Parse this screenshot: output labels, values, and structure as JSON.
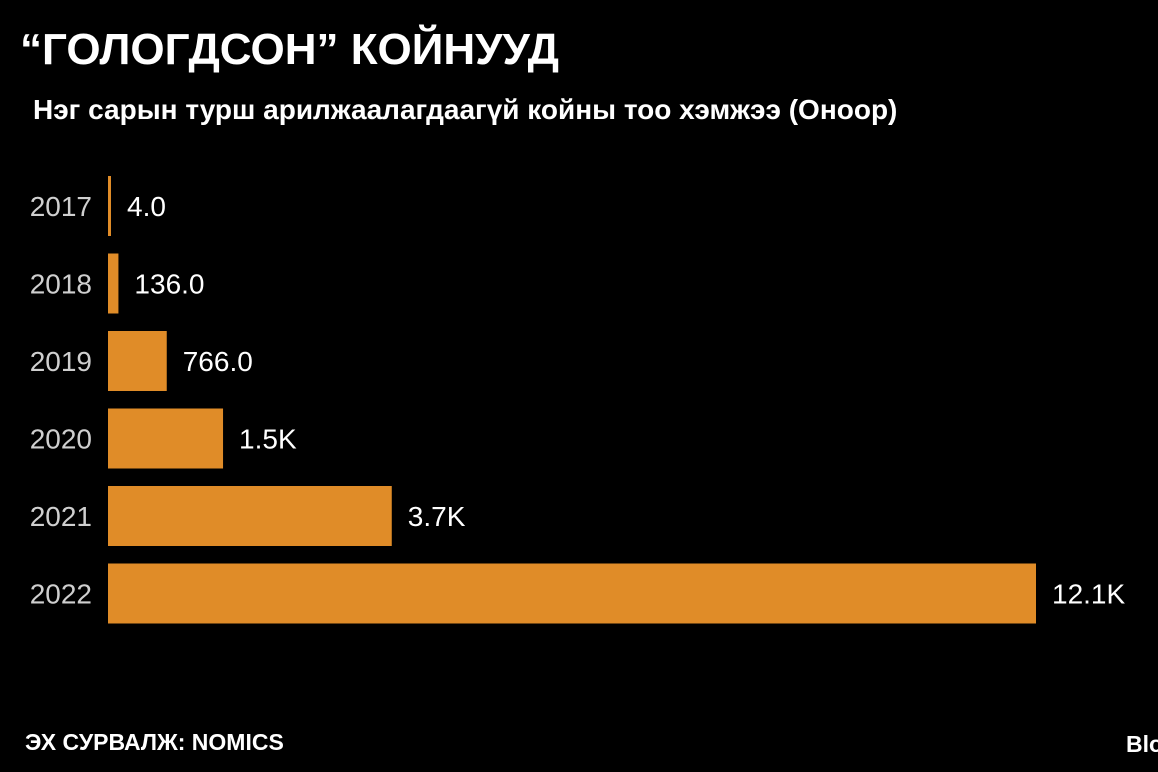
{
  "title": "“ГОЛОГДСОН” КОЙНУУД",
  "subtitle": "Нэг сарын турш арилжаалагдаагүй койны тоо хэмжээ (Оноор)",
  "source": "ЭХ СУРВАЛЖ: NOMICS",
  "brand": "Bloomberg",
  "colors": {
    "background": "#000000",
    "bar": "#e08c28",
    "text": "#ffffff",
    "tick_text": "#cfcfcf"
  },
  "chart_data": {
    "type": "bar",
    "orientation": "horizontal",
    "categories": [
      "2017",
      "2018",
      "2019",
      "2020",
      "2021",
      "2022"
    ],
    "values": [
      4,
      136,
      766,
      1500,
      3700,
      12100
    ],
    "data_labels": [
      "4.0",
      "136.0",
      "766.0",
      "1.5K",
      "3.7K",
      "12.1K"
    ],
    "title": "“ГОЛОГДСОН” КОЙНУУД",
    "subtitle": "Нэг сарын турш арилжаалагдаагүй койны тоо хэмжээ (Оноор)",
    "xlim": [
      0,
      12100
    ],
    "grid": false,
    "legend": "none"
  }
}
